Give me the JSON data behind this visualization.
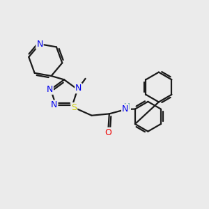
{
  "background_color": "#ebebeb",
  "bond_color": "#1a1a1a",
  "bond_width": 1.6,
  "atom_colors": {
    "N": "#0000ee",
    "O": "#ee0000",
    "S": "#cccc00",
    "H": "#228b8b",
    "C": "#1a1a1a"
  },
  "figsize": [
    3.0,
    3.0
  ],
  "dpi": 100
}
